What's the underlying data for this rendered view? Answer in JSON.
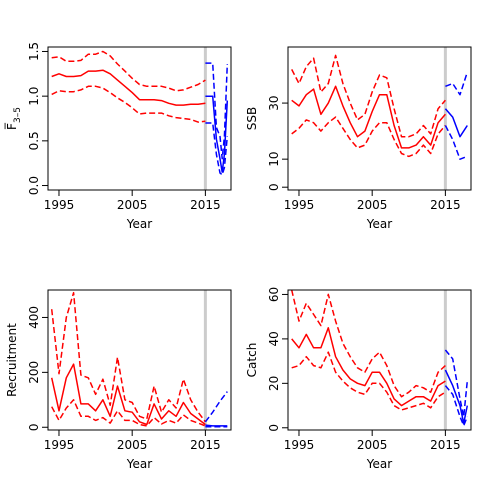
{
  "colors": {
    "historical": "#ff0000",
    "projection": "#0000ff",
    "reference_line": "#cccccc",
    "axis": "#000000"
  },
  "chart_data": [
    {
      "type": "line",
      "id": "fbar",
      "xlabel": "Year",
      "ylabel": "F̅",
      "ylabel_sub": "3–5",
      "xlim": [
        1993.5,
        2018.5
      ],
      "ylim": [
        -0.05,
        1.55
      ],
      "xticks": [
        1995,
        2005,
        2015
      ],
      "xtick_labels": [
        "1995",
        "2005",
        "2015"
      ],
      "yticks": [
        0.0,
        0.5,
        1.0,
        1.5
      ],
      "ytick_labels": [
        "0.0",
        "0.5",
        "1.0",
        "1.5"
      ],
      "reference_x": 2015,
      "series": [
        {
          "group": "historical",
          "x": [
            1994,
            1995,
            1996,
            1997,
            1998,
            1999,
            2000,
            2001,
            2002,
            2003,
            2004,
            2005,
            2006,
            2007,
            2008,
            2009,
            2010,
            2011,
            2012,
            2013,
            2014,
            2015
          ],
          "estimate": [
            1.22,
            1.25,
            1.22,
            1.22,
            1.23,
            1.28,
            1.28,
            1.29,
            1.25,
            1.18,
            1.11,
            1.04,
            0.96,
            0.96,
            0.96,
            0.95,
            0.92,
            0.9,
            0.9,
            0.91,
            0.91,
            0.92
          ],
          "lower": [
            1.02,
            1.06,
            1.05,
            1.05,
            1.07,
            1.11,
            1.11,
            1.09,
            1.04,
            0.98,
            0.93,
            0.87,
            0.8,
            0.81,
            0.81,
            0.81,
            0.78,
            0.76,
            0.75,
            0.74,
            0.71,
            0.72
          ],
          "upper": [
            1.43,
            1.44,
            1.39,
            1.39,
            1.4,
            1.47,
            1.47,
            1.5,
            1.45,
            1.36,
            1.28,
            1.2,
            1.13,
            1.11,
            1.11,
            1.11,
            1.09,
            1.06,
            1.07,
            1.1,
            1.13,
            1.18
          ]
        },
        {
          "group": "projection",
          "x": [
            2015,
            2016,
            2016.5,
            2017,
            2017.3,
            2017.6,
            2018
          ],
          "estimate": [
            1.0,
            1.0,
            0.52,
            0.3,
            0.15,
            0.35,
            0.95
          ],
          "lower": [
            0.7,
            0.7,
            0.35,
            0.14,
            0.12,
            0.2,
            0.55
          ],
          "upper": [
            1.37,
            1.37,
            0.65,
            0.55,
            0.3,
            0.55,
            1.36
          ]
        }
      ]
    },
    {
      "type": "line",
      "id": "ssb",
      "xlabel": "Year",
      "ylabel": "SSB",
      "xlim": [
        1993.5,
        2018.5
      ],
      "ylim": [
        -1,
        50
      ],
      "xticks": [
        1995,
        2005,
        2015
      ],
      "xtick_labels": [
        "1995",
        "2005",
        "2015"
      ],
      "yticks": [
        0,
        10,
        30
      ],
      "ytick_labels": [
        "0",
        "10",
        "30"
      ],
      "reference_x": 2015,
      "series": [
        {
          "group": "historical",
          "x": [
            1994,
            1995,
            1996,
            1997,
            1998,
            1999,
            2000,
            2001,
            2002,
            2003,
            2004,
            2005,
            2006,
            2007,
            2008,
            2009,
            2010,
            2011,
            2012,
            2013,
            2014,
            2015
          ],
          "estimate": [
            31,
            29,
            33,
            35,
            26,
            30,
            36,
            29,
            23,
            18,
            20,
            27,
            33,
            33,
            22,
            14,
            14,
            15,
            18,
            15,
            23,
            26
          ],
          "lower": [
            19,
            21,
            24,
            23,
            20,
            23,
            25,
            21,
            17,
            14,
            15,
            20,
            23,
            23,
            17,
            12,
            11,
            12,
            15,
            12,
            19,
            22
          ],
          "upper": [
            42,
            37,
            43,
            46,
            34,
            37,
            47,
            37,
            30,
            24,
            26,
            34,
            40,
            39,
            28,
            18,
            18,
            19,
            22,
            19,
            28,
            31
          ]
        },
        {
          "group": "projection",
          "x": [
            2015,
            2016,
            2017,
            2018
          ],
          "estimate": [
            28,
            25,
            18,
            22
          ],
          "lower": [
            22,
            17,
            10,
            11
          ],
          "upper": [
            36,
            37,
            33,
            41
          ]
        }
      ]
    },
    {
      "type": "line",
      "id": "recruitment",
      "xlabel": "Year",
      "ylabel": "Recruitment",
      "xlim": [
        1993.5,
        2018.5
      ],
      "ylim": [
        -10,
        500
      ],
      "xticks": [
        1995,
        2005,
        2015
      ],
      "xtick_labels": [
        "1995",
        "2005",
        "2015"
      ],
      "yticks": [
        0,
        200,
        400
      ],
      "ytick_labels": [
        "0",
        "200",
        "400"
      ],
      "reference_x": 2015,
      "series": [
        {
          "group": "historical",
          "x": [
            1994,
            1995,
            1996,
            1997,
            1998,
            1999,
            2000,
            2001,
            2002,
            2003,
            2004,
            2005,
            2006,
            2007,
            2008,
            2009,
            2010,
            2011,
            2012,
            2013,
            2014,
            2015
          ],
          "estimate": [
            180,
            60,
            180,
            230,
            85,
            85,
            60,
            100,
            40,
            150,
            60,
            55,
            20,
            10,
            85,
            30,
            60,
            40,
            90,
            50,
            30,
            10
          ],
          "lower": [
            75,
            25,
            70,
            100,
            40,
            40,
            25,
            35,
            15,
            60,
            25,
            25,
            10,
            5,
            35,
            12,
            25,
            15,
            45,
            25,
            15,
            5
          ],
          "upper": [
            430,
            195,
            400,
            490,
            190,
            180,
            120,
            175,
            80,
            255,
            100,
            90,
            40,
            30,
            150,
            55,
            100,
            70,
            175,
            100,
            55,
            20
          ]
        },
        {
          "group": "projection",
          "x": [
            2015,
            2016,
            2017,
            2018
          ],
          "estimate": [
            8,
            5,
            5,
            5
          ],
          "lower": [
            2,
            2,
            2,
            2
          ],
          "upper": [
            20,
            55,
            95,
            130
          ]
        }
      ]
    },
    {
      "type": "line",
      "id": "catch",
      "xlabel": "Year",
      "ylabel": "Catch",
      "xlim": [
        1993.5,
        2018.5
      ],
      "ylim": [
        -1,
        62
      ],
      "xticks": [
        1995,
        2005,
        2015
      ],
      "xtick_labels": [
        "1995",
        "2005",
        "2015"
      ],
      "yticks": [
        0,
        20,
        40,
        60
      ],
      "ytick_labels": [
        "0",
        "20",
        "40",
        "60"
      ],
      "reference_x": 2015,
      "series": [
        {
          "group": "historical",
          "x": [
            1994,
            1995,
            1996,
            1997,
            1998,
            1999,
            2000,
            2001,
            2002,
            2003,
            2004,
            2005,
            2006,
            2007,
            2008,
            2009,
            2010,
            2011,
            2012,
            2013,
            2014,
            2015
          ],
          "estimate": [
            40,
            36,
            42,
            36,
            36,
            45,
            32,
            26,
            22,
            20,
            19,
            25,
            25,
            20,
            13,
            10,
            12,
            14,
            14,
            12,
            19,
            21
          ],
          "lower": [
            27,
            28,
            32,
            28,
            27,
            34,
            25,
            21,
            18,
            16,
            15,
            20,
            20,
            16,
            10,
            8,
            9,
            10,
            11,
            9,
            14,
            16
          ],
          "upper": [
            62,
            48,
            56,
            51,
            46,
            60,
            48,
            38,
            32,
            27,
            25,
            31,
            34,
            28,
            19,
            14,
            16,
            19,
            18,
            16,
            25,
            28
          ]
        },
        {
          "group": "projection",
          "x": [
            2015,
            2016,
            2017,
            2017.5,
            2018
          ],
          "estimate": [
            26,
            19,
            10,
            2,
            10
          ],
          "lower": [
            19,
            15,
            5,
            1,
            5
          ],
          "upper": [
            35,
            31,
            13,
            5,
            21
          ]
        }
      ]
    }
  ]
}
